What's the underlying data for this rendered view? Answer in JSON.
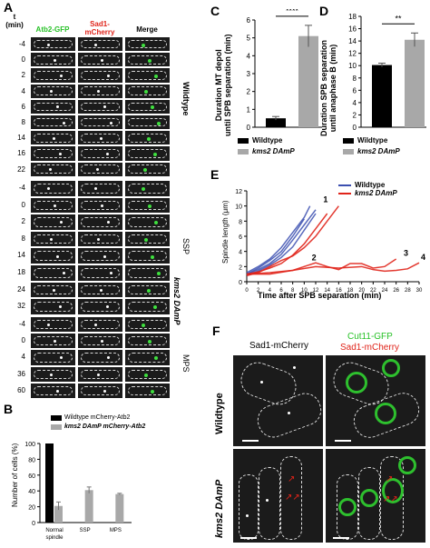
{
  "panels": {
    "A": {
      "label": "A",
      "time_header": "t\n(min)",
      "col1": "Atb2-GFP",
      "col2": "Sad1-\nmCherry",
      "col3": "Merge",
      "groups": [
        {
          "name": "Wildtype",
          "times": [
            "-4",
            "0",
            "2",
            "4",
            "6",
            "8",
            "14",
            "16",
            "22"
          ]
        },
        {
          "name": "SSP",
          "times": [
            "-4",
            "0",
            "2",
            "8",
            "14",
            "18",
            "24",
            "32"
          ]
        },
        {
          "name": "MPS",
          "times": [
            "-4",
            "0",
            "4",
            "36",
            "60"
          ]
        }
      ],
      "strain_label": "kms2 DAmP"
    },
    "B": {
      "label": "B",
      "legend": [
        "Wildtype mCherry-Atb2",
        "kms2 DAmP mCherry-Atb2"
      ],
      "ylabel": "Number of cells (%)"
    },
    "C": {
      "label": "C",
      "ylabel": "Duration MT depol\nuntil SPB separation (min)",
      "significance": "****",
      "legend": [
        "Wildtype",
        "kms2 DAmP"
      ]
    },
    "D": {
      "label": "D",
      "ylabel": "Duration SPB separation\nuntil anaphase B (min)",
      "significance": "**",
      "legend": [
        "Wildtype",
        "kms2 DAmP"
      ]
    },
    "E": {
      "label": "E",
      "ylabel": "Spindle length (μm)",
      "xlabel": "Time after SPB separation (min)",
      "legend": [
        "Wildtype",
        "kms2 DAmP"
      ],
      "annotations": [
        "1",
        "2",
        "3",
        "4"
      ]
    },
    "F": {
      "label": "F",
      "col1": "Sad1-mCherry",
      "col2a": "Cut11-GFP",
      "col2b": "Sad1-mCherry",
      "row1": "Wildtype",
      "row2": "kms2 DAmP"
    }
  },
  "chart_data": [
    {
      "panel": "B",
      "type": "bar",
      "categories": [
        "Normal\nspindle",
        "SSP",
        "MPS"
      ],
      "series": [
        {
          "name": "Wildtype mCherry-Atb2",
          "values": [
            100,
            0,
            0
          ],
          "color": "#000000"
        },
        {
          "name": "kms2 DAmP mCherry-Atb2",
          "values": [
            21,
            41,
            36
          ],
          "errors": [
            5,
            4,
            1
          ],
          "color": "#a8a8a8"
        }
      ],
      "ylabel": "Number of cells (%)",
      "ylim": [
        0,
        100
      ],
      "yticks": [
        0,
        20,
        40,
        60,
        80,
        100
      ]
    },
    {
      "panel": "C",
      "type": "bar",
      "categories": [
        "Wildtype",
        "kms2 DAmP"
      ],
      "values": [
        0.5,
        5.1
      ],
      "errors": [
        0.1,
        0.6
      ],
      "colors": [
        "#000000",
        "#a8a8a8"
      ],
      "ylabel": "Duration MT depol until SPB separation (min)",
      "ylim": [
        0,
        6
      ],
      "yticks": [
        0,
        1,
        2,
        3,
        4,
        5,
        6
      ]
    },
    {
      "panel": "D",
      "type": "bar",
      "categories": [
        "Wildtype",
        "kms2 DAmP"
      ],
      "values": [
        10.1,
        14.2
      ],
      "errors": [
        0.3,
        1.1
      ],
      "colors": [
        "#000000",
        "#a8a8a8"
      ],
      "ylabel": "Duration SPB separation until anaphase B (min)",
      "ylim": [
        0,
        18
      ],
      "yticks": [
        0,
        2,
        4,
        6,
        8,
        10,
        12,
        14,
        16,
        18
      ]
    },
    {
      "panel": "E",
      "type": "line",
      "xlabel": "Time after SPB separation (min)",
      "ylabel": "Spindle length (μm)",
      "xlim": [
        0,
        30
      ],
      "ylim": [
        0,
        12
      ],
      "xticks": [
        0,
        2,
        4,
        6,
        8,
        10,
        12,
        14,
        16,
        18,
        20,
        22,
        24,
        26,
        28,
        30
      ],
      "yticks": [
        0,
        2,
        4,
        6,
        8,
        10,
        12
      ],
      "series": [
        {
          "name": "Wildtype",
          "color": "#3b4fb0",
          "x": [
            0,
            2,
            4,
            6,
            8,
            10,
            12
          ],
          "y": [
            1,
            1.6,
            2.4,
            3.6,
            5.5,
            7.5,
            9.5
          ]
        },
        {
          "name": "Wildtype",
          "color": "#3b4fb0",
          "x": [
            0,
            2,
            4,
            6,
            8,
            10,
            11
          ],
          "y": [
            1.2,
            2,
            3,
            4.5,
            6.5,
            8.5,
            10
          ]
        },
        {
          "name": "Wildtype",
          "color": "#3b4fb0",
          "x": [
            0,
            2,
            4,
            6,
            8,
            10,
            12
          ],
          "y": [
            0.8,
            1.4,
            2.2,
            3.2,
            4.6,
            6.8,
            9
          ]
        },
        {
          "name": "Wildtype",
          "color": "#3b4fb0",
          "x": [
            0,
            2,
            4,
            6,
            8,
            10
          ],
          "y": [
            1,
            1.8,
            2.8,
            4,
            6,
            8.3
          ]
        },
        {
          "name": "kms2 DAmP",
          "color": "#e0241a",
          "x": [
            0,
            2,
            4,
            6,
            8,
            10,
            12,
            14
          ],
          "y": [
            1,
            1.3,
            1.8,
            2.4,
            3.5,
            5,
            7,
            9
          ]
        },
        {
          "name": "kms2 DAmP",
          "color": "#e0241a",
          "x": [
            0,
            2,
            4,
            6,
            8,
            10,
            12,
            14,
            16
          ],
          "y": [
            0.8,
            1.2,
            2,
            2.8,
            3.4,
            4.5,
            6,
            8,
            10
          ]
        },
        {
          "name": "kms2 DAmP",
          "color": "#e0241a",
          "x": [
            0,
            4,
            8,
            10,
            12,
            14,
            16,
            18,
            20,
            22,
            24,
            26
          ],
          "y": [
            1,
            1,
            1.5,
            2,
            2.5,
            2,
            1.6,
            2.4,
            2.4,
            1.8,
            2,
            3
          ]
        },
        {
          "name": "kms2 DAmP",
          "color": "#e0241a",
          "x": [
            0,
            4,
            8,
            12,
            16,
            20,
            22,
            24,
            26,
            28,
            30
          ],
          "y": [
            1,
            1.2,
            1.5,
            2,
            1.8,
            2,
            1.6,
            1.4,
            1.5,
            1.7,
            2.5
          ]
        }
      ]
    }
  ]
}
